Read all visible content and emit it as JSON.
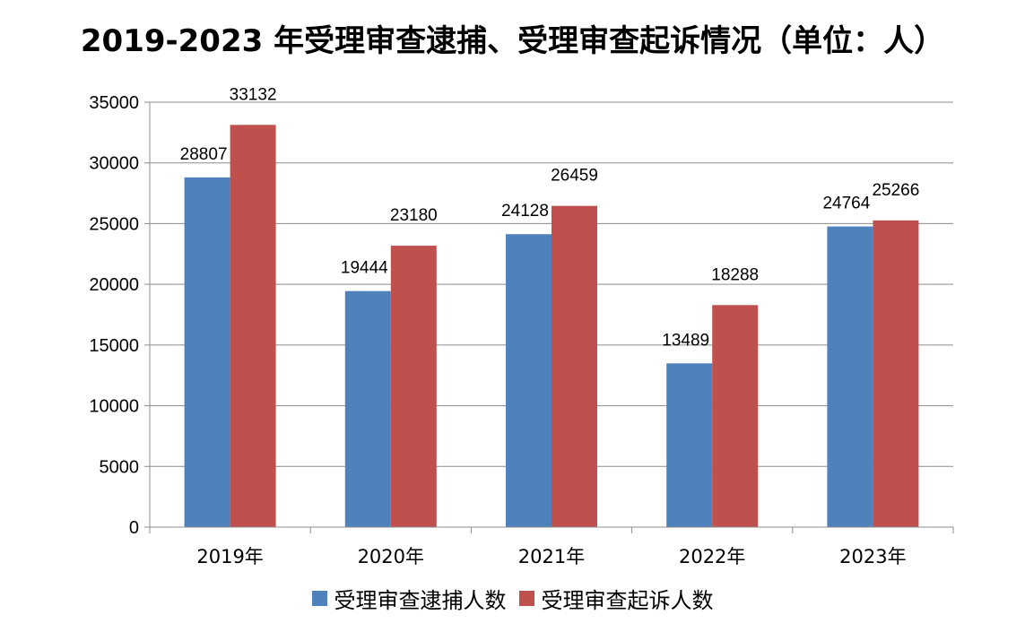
{
  "chart_data": {
    "type": "bar",
    "title": "2019-2023 年受理审查逮捕、受理审查起诉情况（单位：人）",
    "categories": [
      "2019年",
      "2020年",
      "2021年",
      "2022年",
      "2023年"
    ],
    "series": [
      {
        "name": "受理审查逮捕人数",
        "values": [
          28807,
          19444,
          24128,
          13489,
          24764
        ],
        "color": "#4f81bd"
      },
      {
        "name": "受理审查起诉人数",
        "values": [
          33132,
          23180,
          26459,
          18288,
          25266
        ],
        "color": "#c0504d"
      }
    ],
    "ylim": [
      0,
      35000
    ],
    "yticks": [
      0,
      5000,
      10000,
      15000,
      20000,
      25000,
      30000,
      35000
    ],
    "grid": true,
    "legend": "bottom"
  }
}
